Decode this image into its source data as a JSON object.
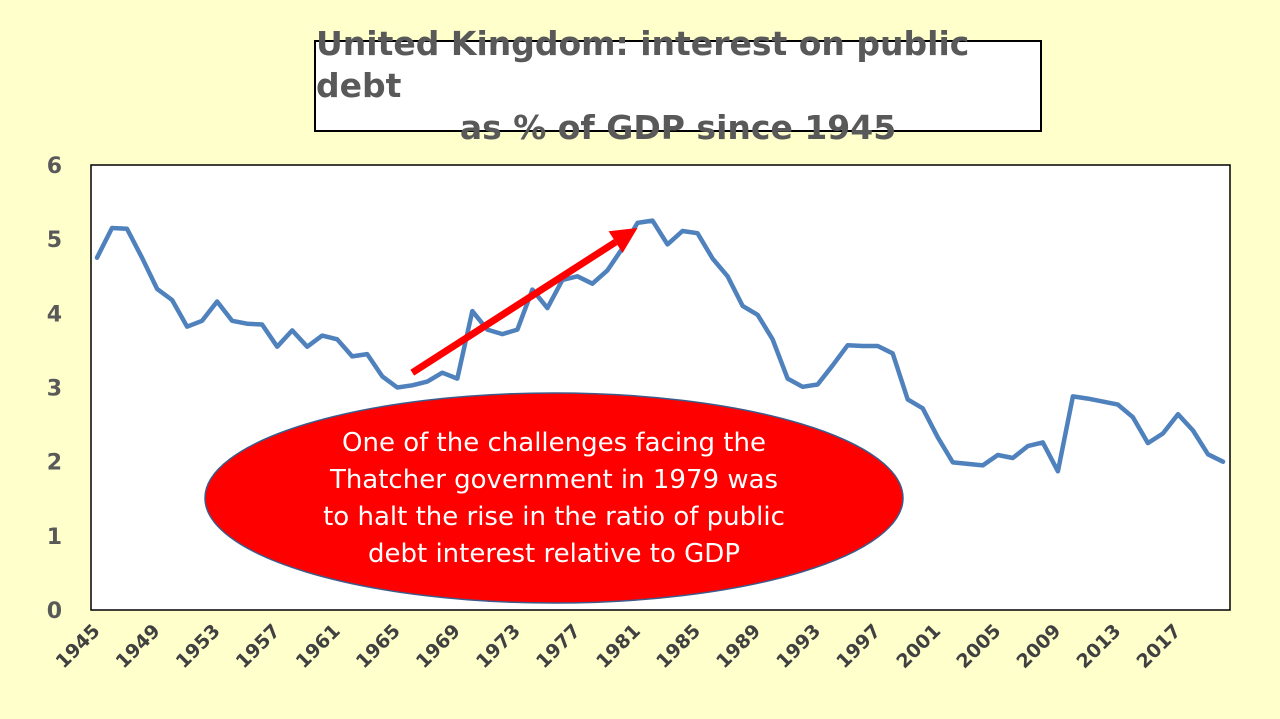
{
  "chart_data": {
    "type": "line",
    "title": "United Kingdom: interest on public debt as % of GDP since 1945",
    "title_lines": [
      "United Kingdom: interest on public debt",
      "as % of GDP since 1945"
    ],
    "xlabel": "",
    "ylabel": "",
    "ylim": [
      0,
      6
    ],
    "y_ticks": [
      "0",
      "1",
      "2",
      "3",
      "4",
      "5",
      "6"
    ],
    "x_tick_labels": [
      "1945",
      "1949",
      "1953",
      "1957",
      "1961",
      "1965",
      "1969",
      "1973",
      "1977",
      "1981",
      "1985",
      "1989",
      "1993",
      "1997",
      "2001",
      "2005",
      "2009",
      "2013",
      "2017"
    ],
    "x_range": [
      1945,
      2020
    ],
    "grid": false,
    "line_color": "#4f81bd",
    "series": [
      {
        "x": [
          1945,
          1946,
          1947,
          1948,
          1949,
          1950,
          1951,
          1952,
          1953,
          1954,
          1955,
          1956,
          1957,
          1958,
          1959,
          1960,
          1961,
          1962,
          1963,
          1964,
          1965,
          1966,
          1967,
          1968,
          1969,
          1970,
          1971,
          1972,
          1973,
          1974,
          1975,
          1976,
          1977,
          1978,
          1979,
          1980,
          1981,
          1982,
          1983,
          1984,
          1985,
          1986,
          1987,
          1988,
          1989,
          1990,
          1991,
          1992,
          1993,
          1994,
          1995,
          1996,
          1997,
          1998,
          1999,
          2000,
          2001,
          2002,
          2003,
          2004,
          2005,
          2006,
          2007,
          2008,
          2009,
          2010,
          2011,
          2012,
          2013,
          2014,
          2015,
          2016,
          2017,
          2018,
          2019,
          2020
        ],
        "values": [
          4.75,
          5.15,
          5.14,
          4.75,
          4.33,
          4.18,
          3.82,
          3.9,
          4.16,
          3.9,
          3.86,
          3.85,
          3.55,
          3.77,
          3.55,
          3.7,
          3.65,
          3.42,
          3.45,
          3.15,
          3.0,
          3.03,
          3.08,
          3.2,
          3.12,
          4.03,
          3.78,
          3.72,
          3.78,
          4.32,
          4.07,
          4.45,
          4.5,
          4.4,
          4.58,
          4.88,
          5.22,
          5.25,
          4.93,
          5.11,
          5.08,
          4.74,
          4.5,
          4.1,
          3.98,
          3.65,
          3.12,
          3.01,
          3.04,
          3.3,
          3.57,
          3.56,
          3.56,
          3.46,
          2.84,
          2.72,
          2.33,
          1.99,
          1.97,
          1.95,
          2.09,
          2.05,
          2.21,
          2.26,
          1.87,
          2.88,
          2.85,
          2.81,
          2.77,
          2.6,
          2.25,
          2.38,
          2.64,
          2.42,
          2.1,
          2.0
        ]
      }
    ],
    "annotations": [
      {
        "lines": [
          "One of the challenges facing the",
          "Thatcher government in 1979 was",
          "to halt the rise in the ratio of public",
          "debt interest relative to GDP"
        ],
        "shape": "ellipse",
        "fill": "#ff0000",
        "text_color": "#ffffff"
      },
      {
        "type": "arrow",
        "from": [
          1966,
          3.2
        ],
        "to": [
          1981,
          5.15
        ],
        "color": "#ff0000"
      }
    ]
  }
}
